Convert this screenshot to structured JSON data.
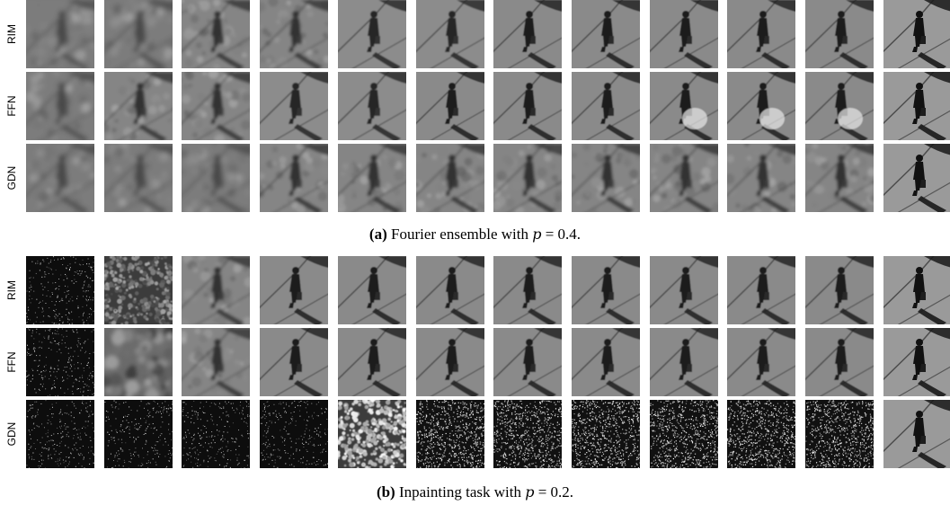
{
  "panels": [
    {
      "row_labels": [
        "RIM",
        "FFN",
        "GDN"
      ],
      "caption": {
        "tag": "(a)",
        "text": "Fourier ensemble with ",
        "var": "p",
        "rest": " = 0.4."
      },
      "styles": [
        [
          "blur-heavy",
          "blur-heavy",
          "blur",
          "blur",
          "blur-light",
          "blur-light",
          "clean",
          "clean",
          "clean",
          "clean",
          "clean",
          "ground-truth"
        ],
        [
          "blur-heavy",
          "blur",
          "blur",
          "blur-light",
          "blur-light",
          "clean",
          "clean",
          "clean",
          "glow",
          "glow",
          "glow",
          "ground-truth"
        ],
        [
          "blur-heavy",
          "blur-heavy",
          "blur-heavy",
          "blur",
          "blur",
          "blur",
          "blur",
          "blur",
          "blur",
          "blur",
          "blur",
          "ground-truth"
        ]
      ]
    },
    {
      "row_labels": [
        "RIM",
        "FFN",
        "GDN"
      ],
      "caption": {
        "tag": "(b)",
        "text": "Inpainting task with ",
        "var": "p",
        "rest": " = 0.2."
      },
      "styles": [
        [
          "sparse-dark",
          "noisy-gray",
          "blur",
          "clean",
          "clean",
          "clean",
          "clean",
          "clean",
          "clean",
          "clean",
          "clean",
          "ground-truth"
        ],
        [
          "sparse-dark",
          "blobs",
          "blur",
          "clean",
          "clean",
          "clean",
          "clean",
          "clean",
          "clean",
          "clean",
          "clean",
          "ground-truth"
        ],
        [
          "sparse-dark",
          "sparse-dark",
          "sparse-dark",
          "sparse-dark",
          "noisy-bright",
          "speckle",
          "speckle",
          "speckle",
          "speckle",
          "speckle",
          "speckle",
          "ground-truth"
        ]
      ]
    }
  ]
}
